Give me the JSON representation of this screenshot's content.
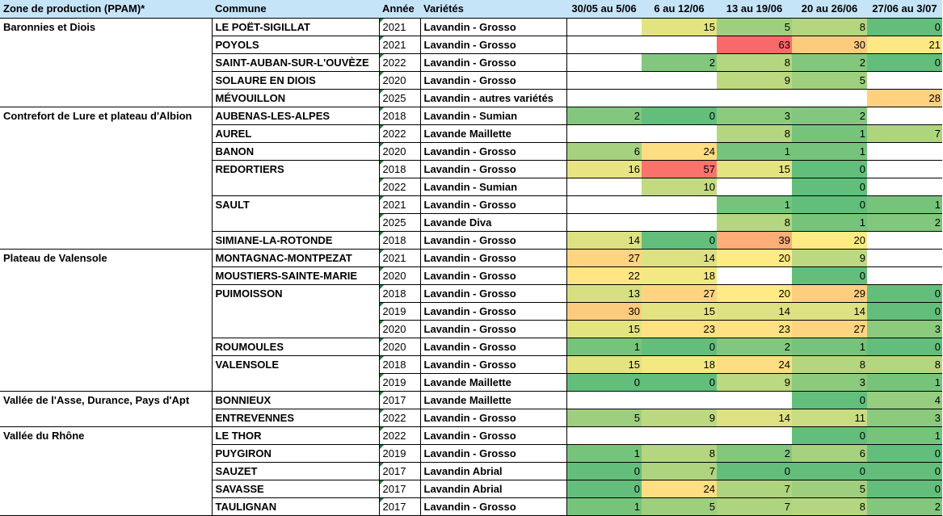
{
  "headers": [
    "Zone de production (PPAM)*",
    "Commune",
    "Année",
    "Variétés",
    "30/05 au 5/06",
    "6 au 12/06",
    "13 au 19/06",
    "20 au 26/06",
    "27/06 au 3/07"
  ],
  "colors": {
    "header_bg": "#c6e4f8",
    "scale_0": "#63be7b",
    "scale_mid": "#ffeb84",
    "scale_max": "#f8696b"
  },
  "rows": [
    {
      "zone": "Baronnies et Diois",
      "commune": "LE POËT-SIGILLAT",
      "annee": "2021",
      "variete": "Lavandin - Grosso",
      "w": [
        "",
        "15",
        "5",
        "8",
        "0"
      ]
    },
    {
      "zone": "",
      "commune": "POYOLS",
      "annee": "2021",
      "variete": "Lavandin - Grosso",
      "w": [
        "",
        "",
        "63",
        "30",
        "21"
      ]
    },
    {
      "zone": "",
      "commune": "SAINT-AUBAN-SUR-L'OUVÈZE",
      "annee": "2022",
      "variete": "Lavandin - Grosso",
      "w": [
        "",
        "2",
        "8",
        "2",
        "0"
      ]
    },
    {
      "zone": "",
      "commune": "SOLAURE EN DIOIS",
      "annee": "2020",
      "variete": "Lavandin - Grosso",
      "w": [
        "",
        "",
        "9",
        "5",
        ""
      ]
    },
    {
      "zone": "",
      "commune": "MÉVOUILLON",
      "annee": "2025",
      "variete": "Lavandin - autres variétés",
      "w": [
        "",
        "",
        "",
        "",
        "28"
      ]
    },
    {
      "zone": "Contrefort de Lure et plateau d'Albion",
      "commune": "AUBENAS-LES-ALPES",
      "annee": "2018",
      "variete": "Lavandin - Sumian",
      "w": [
        "2",
        "0",
        "3",
        "2",
        ""
      ]
    },
    {
      "zone": "",
      "commune": "AUREL",
      "annee": "2022",
      "variete": "Lavande Maillette",
      "w": [
        "",
        "",
        "8",
        "1",
        "7"
      ]
    },
    {
      "zone": "",
      "commune": "BANON",
      "annee": "2020",
      "variete": "Lavandin - Grosso",
      "w": [
        "6",
        "24",
        "1",
        "1",
        ""
      ]
    },
    {
      "zone": "",
      "commune": "REDORTIERS",
      "annee": "2018",
      "variete": "Lavandin - Grosso",
      "w": [
        "16",
        "57",
        "15",
        "0",
        ""
      ]
    },
    {
      "zone": "",
      "commune": "",
      "annee": "2022",
      "variete": "Lavandin - Sumian",
      "w": [
        "",
        "10",
        "",
        "0",
        ""
      ]
    },
    {
      "zone": "",
      "commune": "SAULT",
      "annee": "2021",
      "variete": "Lavandin - Grosso",
      "w": [
        "",
        "",
        "1",
        "0",
        "1"
      ]
    },
    {
      "zone": "",
      "commune": "",
      "annee": "2025",
      "variete": "Lavande Diva",
      "w": [
        "",
        "",
        "8",
        "1",
        "2"
      ]
    },
    {
      "zone": "",
      "commune": "SIMIANE-LA-ROTONDE",
      "annee": "2018",
      "variete": "Lavandin - Grosso",
      "w": [
        "14",
        "0",
        "39",
        "20",
        ""
      ]
    },
    {
      "zone": "Plateau de Valensole",
      "commune": "MONTAGNAC-MONTPEZAT",
      "annee": "2021",
      "variete": "Lavandin - Grosso",
      "w": [
        "27",
        "14",
        "20",
        "9",
        ""
      ]
    },
    {
      "zone": "",
      "commune": "MOUSTIERS-SAINTE-MARIE",
      "annee": "2020",
      "variete": "Lavandin - Grosso",
      "w": [
        "22",
        "18",
        "",
        "0",
        ""
      ]
    },
    {
      "zone": "",
      "commune": "PUIMOISSON",
      "annee": "2018",
      "variete": "Lavandin - Grosso",
      "w": [
        "13",
        "27",
        "20",
        "29",
        "0"
      ]
    },
    {
      "zone": "",
      "commune": "",
      "annee": "2019",
      "variete": "Lavandin - Grosso",
      "w": [
        "30",
        "15",
        "14",
        "14",
        "0"
      ]
    },
    {
      "zone": "",
      "commune": "",
      "annee": "2020",
      "variete": "Lavandin - Grosso",
      "w": [
        "15",
        "23",
        "23",
        "27",
        "3"
      ]
    },
    {
      "zone": "",
      "commune": "ROUMOULES",
      "annee": "2020",
      "variete": "Lavandin - Grosso",
      "w": [
        "1",
        "0",
        "2",
        "1",
        "0"
      ]
    },
    {
      "zone": "",
      "commune": "VALENSOLE",
      "annee": "2018",
      "variete": "Lavandin - Grosso",
      "w": [
        "15",
        "18",
        "24",
        "8",
        "8"
      ]
    },
    {
      "zone": "",
      "commune": "",
      "annee": "2019",
      "variete": "Lavande Maillette",
      "w": [
        "0",
        "0",
        "9",
        "3",
        "1"
      ]
    },
    {
      "zone": "Vallée de l'Asse, Durance, Pays d'Apt",
      "commune": "BONNIEUX",
      "annee": "2017",
      "variete": "Lavande Maillette",
      "w": [
        "",
        "",
        "",
        "0",
        "4"
      ]
    },
    {
      "zone": "",
      "commune": "ENTREVENNES",
      "annee": "2022",
      "variete": "Lavandin - Grosso",
      "w": [
        "5",
        "9",
        "14",
        "11",
        "3"
      ]
    },
    {
      "zone": "Vallée du Rhône",
      "commune": "LE THOR",
      "annee": "2022",
      "variete": "Lavandin - Grosso",
      "w": [
        "",
        "",
        "",
        "0",
        "1"
      ]
    },
    {
      "zone": "",
      "commune": "PUYGIRON",
      "annee": "2019",
      "variete": "Lavandin - Grosso",
      "w": [
        "1",
        "8",
        "2",
        "6",
        "0"
      ]
    },
    {
      "zone": "",
      "commune": "SAUZET",
      "annee": "2017",
      "variete": "Lavandin Abrial",
      "w": [
        "0",
        "7",
        "0",
        "0",
        "0"
      ]
    },
    {
      "zone": "",
      "commune": "SAVASSE",
      "annee": "2017",
      "variete": "Lavandin Abrial",
      "w": [
        "0",
        "24",
        "7",
        "5",
        "0"
      ]
    },
    {
      "zone": "",
      "commune": "TAULIGNAN",
      "annee": "2017",
      "variete": "Lavandin - Grosso",
      "w": [
        "1",
        "5",
        "7",
        "8",
        "2"
      ]
    }
  ]
}
